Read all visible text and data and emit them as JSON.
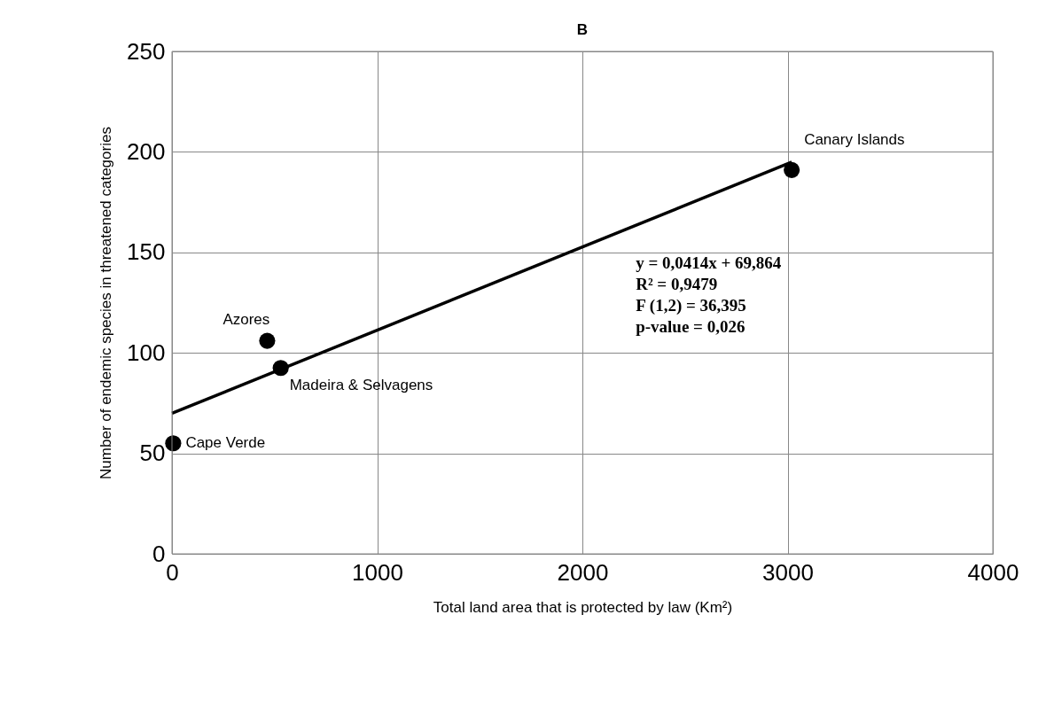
{
  "chart_data": {
    "type": "scatter",
    "title": "B",
    "xlabel": "Total land area that is protected by law (Km²)",
    "ylabel": "Number of endemic species in threatened categories",
    "x": [
      6,
      464,
      530,
      3020
    ],
    "values": [
      55,
      106,
      92.5,
      191
    ],
    "color": "#000000",
    "marker": "circle",
    "series": [
      {
        "type": "line",
        "color": "#000000",
        "marker": "none",
        "x": [
          0,
          3020
        ],
        "values": [
          69.9,
          194.9
        ]
      }
    ],
    "xlim": [
      0,
      4000
    ],
    "xticks": [
      0,
      1000,
      2000,
      3000,
      4000
    ],
    "ylim": [
      0,
      250
    ],
    "yticks": [
      0,
      50,
      100,
      150,
      200,
      250
    ],
    "grid": true,
    "annotations": [
      {
        "text": "Cape Verde",
        "x": 6,
        "y": 55
      },
      {
        "text": "Azores",
        "x": 464,
        "y": 106
      },
      {
        "text": "Madeira & Selvagens",
        "x": 530,
        "y": 92.5
      },
      {
        "text": "Canary Islands",
        "x": 3020,
        "y": 191
      },
      "y = 0,0414x + 69,864\nR² = 0,9479\nF (1,2) = 36,395\np-value = 0,026"
    ]
  }
}
